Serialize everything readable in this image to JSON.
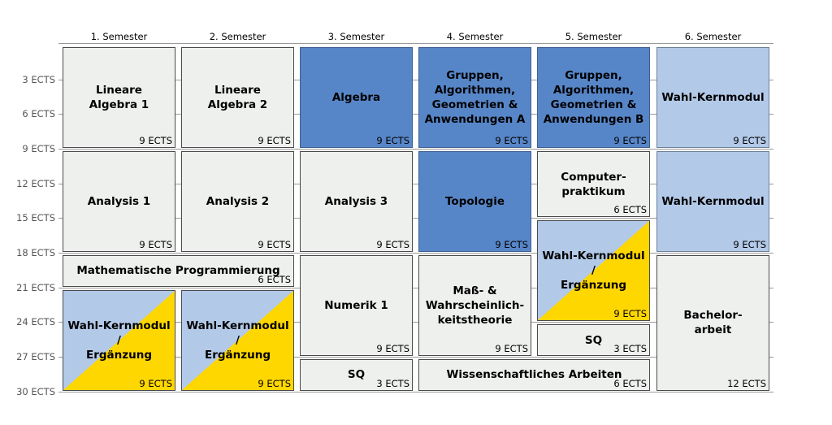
{
  "semesters": [
    "1. Semester",
    "2. Semester",
    "3. Semester",
    "4. Semester",
    "5. Semester",
    "6. Semester"
  ],
  "y_labels": [
    "3 ECTS",
    "6 ECTS",
    "9 ECTS",
    "12 ECTS",
    "15 ECTS",
    "18 ECTS",
    "21 ECTS",
    "24 ECTS",
    "27 ECTS",
    "30 ECTS"
  ],
  "modules": [
    {
      "id": "lineare-algebra-1",
      "title": "Lineare\nAlgebra 1",
      "ects": "9 ECTS",
      "semester": 1,
      "span": 1,
      "start": 0,
      "credits": 9,
      "style": "plain"
    },
    {
      "id": "lineare-algebra-2",
      "title": "Lineare\nAlgebra 2",
      "ects": "9 ECTS",
      "semester": 2,
      "span": 1,
      "start": 0,
      "credits": 9,
      "style": "plain"
    },
    {
      "id": "algebra",
      "title": "Algebra",
      "ects": "9 ECTS",
      "semester": 3,
      "span": 1,
      "start": 0,
      "credits": 9,
      "style": "dark"
    },
    {
      "id": "gruppen-a",
      "title": "Gruppen,\nAlgorithmen,\nGeometrien &\nAnwendungen A",
      "ects": "9 ECTS",
      "semester": 4,
      "span": 1,
      "start": 0,
      "credits": 9,
      "style": "dark"
    },
    {
      "id": "gruppen-b",
      "title": "Gruppen,\nAlgorithmen,\nGeometrien &\nAnwendungen B",
      "ects": "9 ECTS",
      "semester": 5,
      "span": 1,
      "start": 0,
      "credits": 9,
      "style": "dark"
    },
    {
      "id": "wahl-kernmodul-6a",
      "title": "Wahl-Kernmodul",
      "ects": "9 ECTS",
      "semester": 6,
      "span": 1,
      "start": 0,
      "credits": 9,
      "style": "light"
    },
    {
      "id": "analysis-1",
      "title": "Analysis 1",
      "ects": "9 ECTS",
      "semester": 1,
      "span": 1,
      "start": 9,
      "credits": 9,
      "style": "plain"
    },
    {
      "id": "analysis-2",
      "title": "Analysis 2",
      "ects": "9 ECTS",
      "semester": 2,
      "span": 1,
      "start": 9,
      "credits": 9,
      "style": "plain"
    },
    {
      "id": "analysis-3",
      "title": "Analysis 3",
      "ects": "9 ECTS",
      "semester": 3,
      "span": 1,
      "start": 9,
      "credits": 9,
      "style": "plain"
    },
    {
      "id": "topologie",
      "title": "Topologie",
      "ects": "9 ECTS",
      "semester": 4,
      "span": 1,
      "start": 9,
      "credits": 9,
      "style": "dark"
    },
    {
      "id": "computerpraktikum",
      "title": "Computer-\npraktikum",
      "ects": "6 ECTS",
      "semester": 5,
      "span": 1,
      "start": 9,
      "credits": 6,
      "style": "plain"
    },
    {
      "id": "wahl-kernmodul-6b",
      "title": "Wahl-Kernmodul",
      "ects": "9 ECTS",
      "semester": 6,
      "span": 1,
      "start": 9,
      "credits": 9,
      "style": "light"
    },
    {
      "id": "mathematische-programmierung",
      "title": "Mathematische Programmierung",
      "ects": "6 ECTS",
      "semester": 1,
      "span": 2,
      "start": 18,
      "credits": 3,
      "style": "plain"
    },
    {
      "id": "wahl-ergaenzung-1",
      "title": "Wahl-Kernmodul /\nErgänzung",
      "ects": "9 ECTS",
      "semester": 1,
      "span": 1,
      "start": 21,
      "credits": 9,
      "style": "split"
    },
    {
      "id": "wahl-ergaenzung-2",
      "title": "Wahl-Kernmodul /\nErgänzung",
      "ects": "9 ECTS",
      "semester": 2,
      "span": 1,
      "start": 21,
      "credits": 9,
      "style": "split"
    },
    {
      "id": "numerik-1",
      "title": "Numerik 1",
      "ects": "9 ECTS",
      "semester": 3,
      "span": 1,
      "start": 18,
      "credits": 9,
      "style": "plain"
    },
    {
      "id": "sq-3",
      "title": "SQ",
      "ects": "3 ECTS",
      "semester": 3,
      "span": 1,
      "start": 27,
      "credits": 3,
      "style": "plain"
    },
    {
      "id": "mass-wahrscheinlichkeit",
      "title": "Maß- &\nWahrscheinlich-\nkeitstheorie",
      "ects": "9 ECTS",
      "semester": 4,
      "span": 1,
      "start": 18,
      "credits": 9,
      "style": "plain"
    },
    {
      "id": "wissenschaftliches-arbeiten",
      "title": "Wissenschaftliches Arbeiten",
      "ects": "6 ECTS",
      "semester": 4,
      "span": 2,
      "start": 27,
      "credits": 3,
      "style": "plain"
    },
    {
      "id": "wahl-ergaenzung-5",
      "title": "Wahl-Kernmodul /\nErgänzung",
      "ects": "9 ECTS",
      "semester": 5,
      "span": 1,
      "start": 15,
      "credits": 9,
      "style": "split"
    },
    {
      "id": "sq-5",
      "title": "SQ",
      "ects": "3 ECTS",
      "semester": 5,
      "span": 1,
      "start": 24,
      "credits": 3,
      "style": "plain"
    },
    {
      "id": "bachelorarbeit",
      "title": "Bachelor-\narbeit",
      "ects": "12 ECTS",
      "semester": 6,
      "span": 1,
      "start": 18,
      "credits": 12,
      "style": "plain"
    }
  ],
  "colors": {
    "plain": "#eef0ee",
    "dark": "#5786c8",
    "light": "#b3c9e8",
    "yellow": "#ffd700"
  }
}
